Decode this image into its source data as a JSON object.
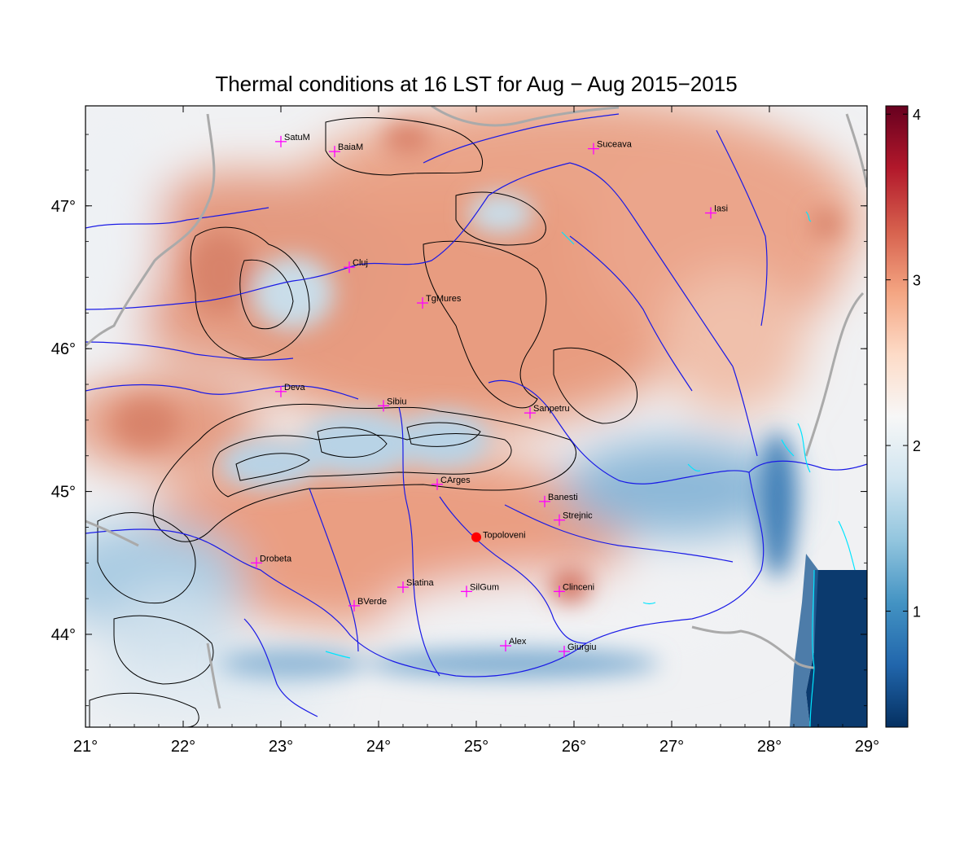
{
  "map": {
    "title": "Thermal conditions at 16 LST for Aug − Aug  2015−2015",
    "lon_ticks": [
      21,
      22,
      23,
      24,
      25,
      26,
      27,
      28,
      29
    ],
    "lat_ticks": [
      44,
      45,
      46,
      47
    ],
    "lon_range": [
      21,
      29
    ],
    "lat_range": [
      43.35,
      47.7
    ],
    "stations": [
      {
        "name": "SatuM",
        "lon": 23.0,
        "lat": 47.45
      },
      {
        "name": "BaiaM",
        "lon": 23.55,
        "lat": 47.38
      },
      {
        "name": "Suceava",
        "lon": 26.2,
        "lat": 47.4
      },
      {
        "name": "Iasi",
        "lon": 27.4,
        "lat": 46.95
      },
      {
        "name": "Cluj",
        "lon": 23.7,
        "lat": 46.57
      },
      {
        "name": "TgMures",
        "lon": 24.45,
        "lat": 46.32
      },
      {
        "name": "Deva",
        "lon": 23.0,
        "lat": 45.7
      },
      {
        "name": "Sibiu",
        "lon": 24.05,
        "lat": 45.6
      },
      {
        "name": "Sanpetru",
        "lon": 25.55,
        "lat": 45.55
      },
      {
        "name": "CArges",
        "lon": 24.6,
        "lat": 45.05
      },
      {
        "name": "Banesti",
        "lon": 25.7,
        "lat": 44.93
      },
      {
        "name": "Strejnic",
        "lon": 25.85,
        "lat": 44.8
      },
      {
        "name": "Drobeta",
        "lon": 22.75,
        "lat": 44.5
      },
      {
        "name": "Slatina",
        "lon": 24.25,
        "lat": 44.33
      },
      {
        "name": "SilGum",
        "lon": 24.9,
        "lat": 44.3
      },
      {
        "name": "Clinceni",
        "lon": 25.85,
        "lat": 44.3
      },
      {
        "name": "BVerde",
        "lon": 23.75,
        "lat": 44.2
      },
      {
        "name": "Alex",
        "lon": 25.3,
        "lat": 43.92
      },
      {
        "name": "Giurgiu",
        "lon": 25.9,
        "lat": 43.88
      }
    ],
    "highlight": {
      "name": "Topoloveni",
      "lon": 25.0,
      "lat": 44.68,
      "color": "#ff0000"
    },
    "station_marker_color": "#ff00ff",
    "colorbar": {
      "min": 0.3,
      "max": 4.05,
      "ticks": [
        1,
        2,
        3,
        4
      ],
      "colors": [
        "#053061",
        "#2166ac",
        "#4393c3",
        "#92c5de",
        "#d1e5f0",
        "#f7f7f7",
        "#fddbc7",
        "#f4a582",
        "#d6604d",
        "#b2182b",
        "#67001f"
      ]
    },
    "colors": {
      "rivers": "#1a1ae6",
      "borders": "#aaaaaa",
      "contours": "#000000",
      "lakes": "#00e5ff",
      "warm": "#e8967a",
      "cool": "#eef4f8",
      "cold": "#4a8fc4",
      "sea": "#0b3a6e"
    }
  }
}
